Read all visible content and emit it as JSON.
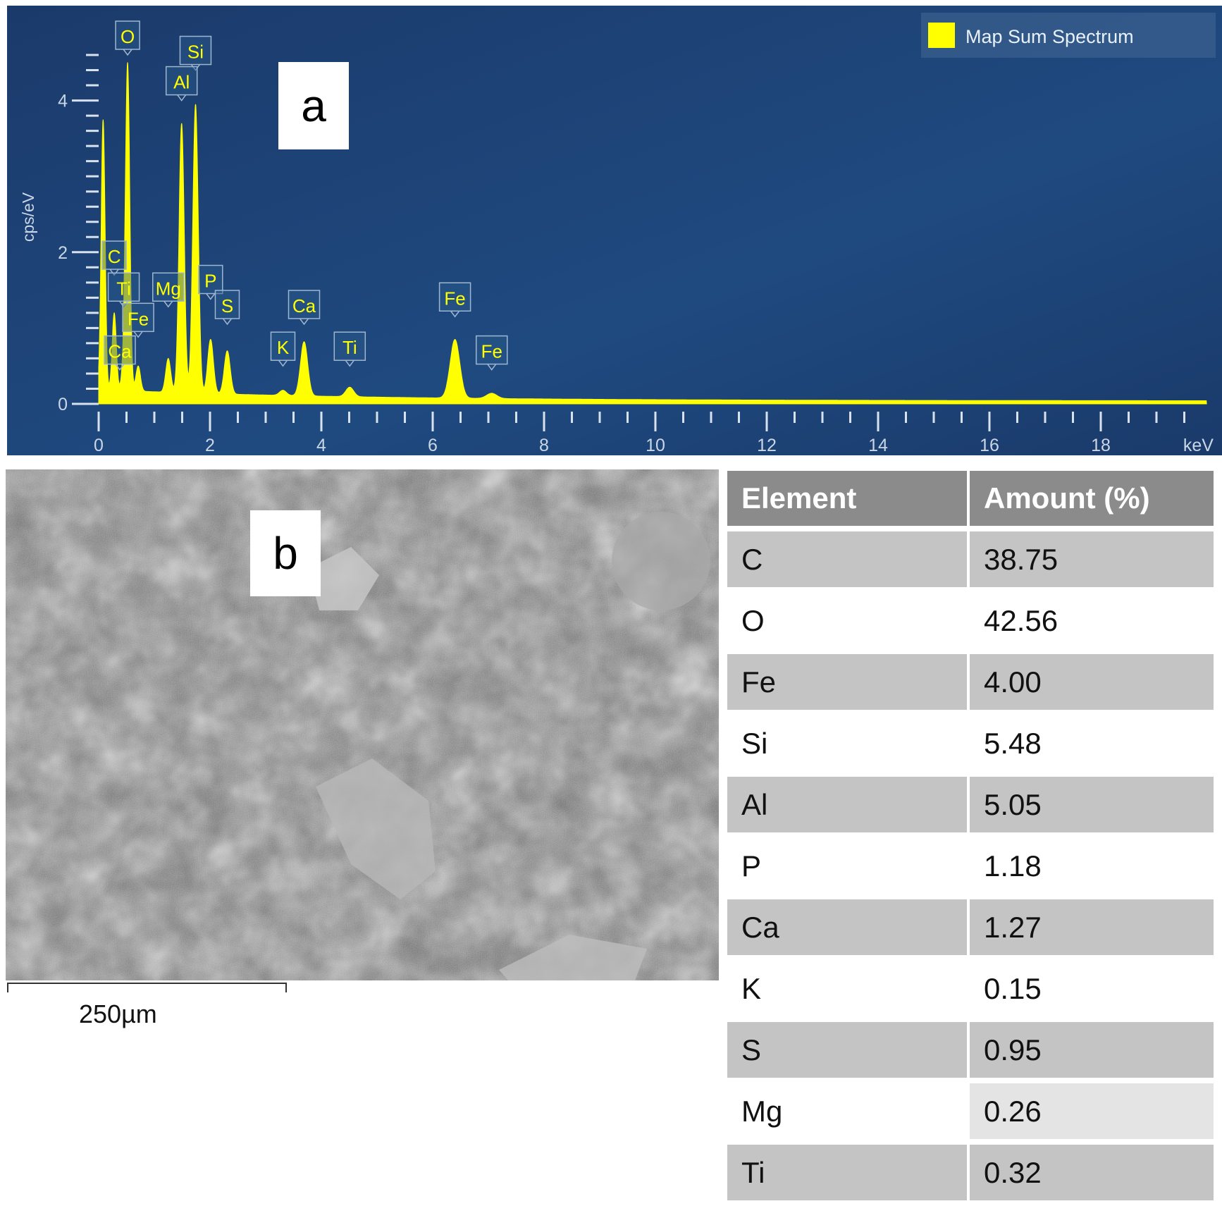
{
  "chart_data": [
    {
      "type": "line",
      "xlabel": "keV",
      "ylabel": "cps/eV",
      "xlim": [
        0,
        20
      ],
      "ylim": [
        0,
        4.6
      ],
      "x_ticks": [
        0,
        2,
        4,
        6,
        8,
        10,
        12,
        14,
        16,
        18
      ],
      "y_ticks": [
        0,
        2,
        4
      ],
      "legend": {
        "label": "Map Sum Spectrum",
        "color": "#ffff00",
        "position": "top-right"
      },
      "background": "#1c3f73",
      "series": [
        {
          "name": "Map Sum Spectrum",
          "color": "#ffff00",
          "peaks": [
            {
              "x": 0.08,
              "y": 3.75
            },
            {
              "x": 0.28,
              "y": 1.2
            },
            {
              "x": 0.45,
              "y": 0.45
            },
            {
              "x": 0.52,
              "y": 4.45
            },
            {
              "x": 0.71,
              "y": 0.5
            },
            {
              "x": 1.25,
              "y": 0.6
            },
            {
              "x": 1.49,
              "y": 3.7
            },
            {
              "x": 1.74,
              "y": 3.95
            },
            {
              "x": 2.01,
              "y": 0.85
            },
            {
              "x": 2.31,
              "y": 0.7
            },
            {
              "x": 3.31,
              "y": 0.18
            },
            {
              "x": 3.69,
              "y": 0.82
            },
            {
              "x": 4.51,
              "y": 0.22
            },
            {
              "x": 6.4,
              "y": 0.85
            },
            {
              "x": 7.06,
              "y": 0.14
            }
          ]
        }
      ],
      "annotations": [
        {
          "label": "O",
          "x": 0.52,
          "y": 4.6
        },
        {
          "label": "Si",
          "x": 1.74,
          "y": 4.4
        },
        {
          "label": "Al",
          "x": 1.49,
          "y": 4.0
        },
        {
          "label": "C",
          "x": 0.28,
          "y": 1.7
        },
        {
          "label": "Ti",
          "x": 0.45,
          "y": 1.28
        },
        {
          "label": "Fe",
          "x": 0.71,
          "y": 0.88
        },
        {
          "label": "Ca",
          "x": 0.38,
          "y": 0.45
        },
        {
          "label": "Mg",
          "x": 1.25,
          "y": 1.28
        },
        {
          "label": "P",
          "x": 2.01,
          "y": 1.38
        },
        {
          "label": "S",
          "x": 2.31,
          "y": 1.05
        },
        {
          "label": "K",
          "x": 3.31,
          "y": 0.5
        },
        {
          "label": "Ca",
          "x": 3.69,
          "y": 1.05
        },
        {
          "label": "Ti",
          "x": 4.51,
          "y": 0.5
        },
        {
          "label": "Fe",
          "x": 6.4,
          "y": 1.15
        },
        {
          "label": "Fe",
          "x": 7.06,
          "y": 0.45
        }
      ]
    },
    {
      "type": "table",
      "columns": [
        "Element",
        "Amount (%)"
      ],
      "rows": [
        [
          "C",
          "38.75"
        ],
        [
          "O",
          "42.56"
        ],
        [
          "Fe",
          "4.00"
        ],
        [
          "Si",
          "5.48"
        ],
        [
          "Al",
          "5.05"
        ],
        [
          "P",
          "1.18"
        ],
        [
          "Ca",
          "1.27"
        ],
        [
          "K",
          "0.15"
        ],
        [
          "S",
          "0.95"
        ],
        [
          "Mg",
          "0.26"
        ],
        [
          "Ti",
          "0.32"
        ]
      ]
    }
  ],
  "panels": {
    "a": "a",
    "b": "b"
  },
  "sem_image": {
    "scale_bar_label": "250µm"
  }
}
